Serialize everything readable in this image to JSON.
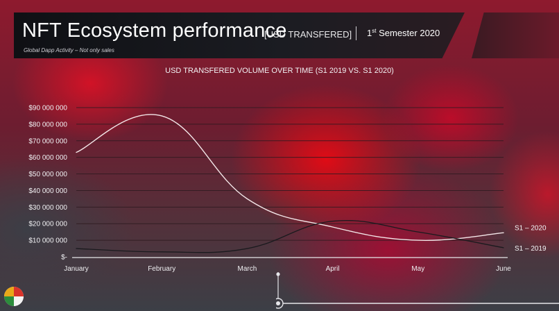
{
  "header": {
    "title": "NFT Ecosystem performance",
    "title_bracket": "[USD TRANSFERED]",
    "semester_num": "1",
    "semester_sup": "st",
    "semester_rest": "Semester 2020",
    "subtitle": "Global Dapp Activity – Not only sales"
  },
  "chart_data": {
    "type": "line",
    "title": "USD TRANSFERED VOLUME OVER TIME (S1 2019 VS. S1 2020)",
    "categories": [
      "January",
      "February",
      "March",
      "April",
      "May",
      "June"
    ],
    "y_tick_labels": [
      "$-",
      "$10 000 000",
      "$20 000 000",
      "$30 000 000",
      "$40 000 000",
      "$50 000 000",
      "$60 000 000",
      "$70 000 000",
      "$80 000 000",
      "$90 000 000"
    ],
    "ylim": [
      0,
      90000000
    ],
    "grid": true,
    "series": [
      {
        "name": "S1 – 2020",
        "values": [
          63000000,
          85000000,
          35000000,
          18000000,
          10000000,
          14500000
        ],
        "color": "#f3e6e8"
      },
      {
        "name": "S1 – 2019",
        "values": [
          5000000,
          3000000,
          5000000,
          21500000,
          15000000,
          5500000
        ],
        "color": "#1a1a1e"
      }
    ]
  },
  "colors": {
    "grid": "#2e1a20",
    "axis": "#e8e8ea",
    "timeline": "#e6e6ea"
  }
}
